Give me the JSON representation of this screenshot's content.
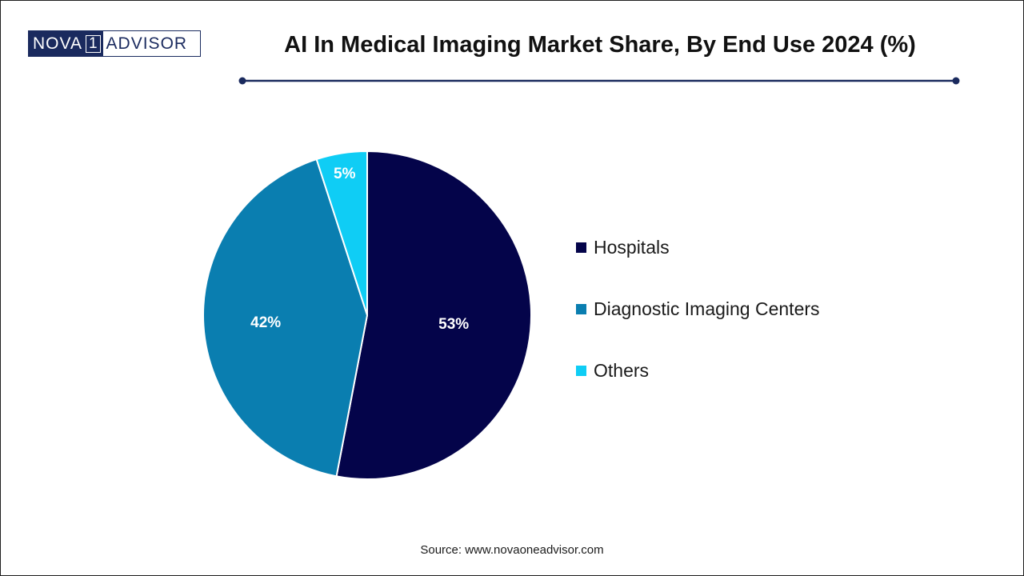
{
  "logo": {
    "part1": "NOVA",
    "part2": "1",
    "part3": "ADVISOR"
  },
  "colors": {
    "brand": "#1a2a5e",
    "hospitals": "#04044a",
    "diagnostic": "#0a7eb0",
    "others": "#0fcdf5"
  },
  "chart_data": {
    "type": "pie",
    "title": "AI In Medical Imaging Market Share, By End Use 2024 (%)",
    "slices": [
      {
        "label": "Hospitals",
        "value": 53,
        "display": "53%",
        "color": "#04044a"
      },
      {
        "label": "Diagnostic Imaging Centers",
        "value": 42,
        "display": "42%",
        "color": "#0a7eb0"
      },
      {
        "label": "Others",
        "value": 5,
        "display": "5%",
        "color": "#0fcdf5"
      }
    ],
    "legend_position": "right",
    "start_angle_deg": 0,
    "direction": "clockwise"
  },
  "source": "Source: www.novaoneadvisor.com"
}
